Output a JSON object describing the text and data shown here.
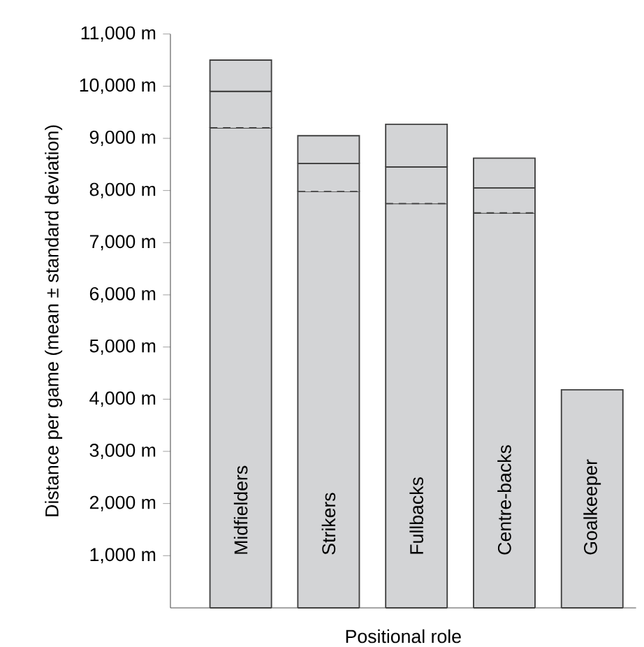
{
  "chart_data": {
    "type": "bar",
    "stacked": true,
    "xlabel": "Positional role",
    "ylabel": "Distance per game (mean ± standard deviation)",
    "categories": [
      "Midfielders",
      "Strikers",
      "Fullbacks",
      "Centre-backs",
      "Goalkeeper"
    ],
    "series": [
      {
        "color": "#d3d4d6",
        "values": [
          9200,
          7980,
          7750,
          7570,
          4180
        ]
      },
      {
        "color": "#d3d4d6",
        "line_style": "dashed",
        "values": [
          700,
          540,
          700,
          480,
          null
        ]
      },
      {
        "color": "#d3d4d6",
        "line_style": "solid",
        "values": [
          600,
          530,
          820,
          570,
          null
        ]
      }
    ],
    "ylim": [
      0,
      11000
    ],
    "yticks": [
      {
        "value": 1000,
        "label": "1,000 m"
      },
      {
        "value": 2000,
        "label": "2,000 m"
      },
      {
        "value": 3000,
        "label": "3,000 m"
      },
      {
        "value": 4000,
        "label": "4,000 m"
      },
      {
        "value": 5000,
        "label": "5,000 m"
      },
      {
        "value": 6000,
        "label": "6,000 m"
      },
      {
        "value": 7000,
        "label": "7,000 m"
      },
      {
        "value": 8000,
        "label": "8,000 m"
      },
      {
        "value": 9000,
        "label": "9,000 m"
      },
      {
        "value": 10000,
        "label": "10,000 m"
      },
      {
        "value": 11000,
        "label": "11,000 m"
      }
    ]
  }
}
